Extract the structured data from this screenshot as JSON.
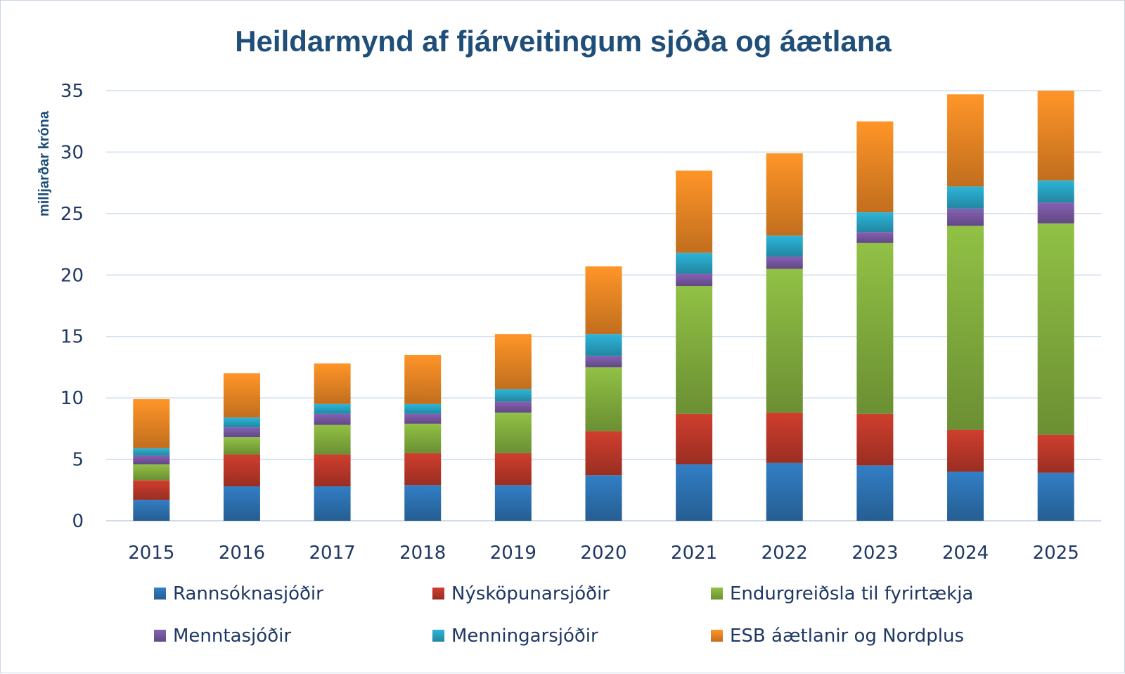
{
  "chart_data": {
    "type": "bar",
    "stacked": true,
    "title": "Heildarmynd af fjárveitingum sjóða og áætlana",
    "xlabel": "",
    "ylabel": "milljarðar króna",
    "ylim": [
      0,
      35
    ],
    "yticks": [
      0,
      5,
      10,
      15,
      20,
      25,
      30,
      35
    ],
    "grid": true,
    "legend_position": "bottom",
    "categories": [
      "2015",
      "2016",
      "2017",
      "2018",
      "2019",
      "2020",
      "2021",
      "2022",
      "2023",
      "2024",
      "2025"
    ],
    "series": [
      {
        "name": "Rannsóknasjóðir",
        "color": "#2e75b6",
        "values": [
          1.7,
          2.8,
          2.8,
          2.9,
          2.9,
          3.7,
          4.6,
          4.7,
          4.5,
          4.0,
          3.9
        ]
      },
      {
        "name": "Nýsköpunarsjóðir",
        "color": "#c0392b",
        "values": [
          1.6,
          2.6,
          2.6,
          2.6,
          2.6,
          3.6,
          4.1,
          4.1,
          4.2,
          3.4,
          3.1
        ]
      },
      {
        "name": "Endurgreiðsla til fyrirtækja",
        "color": "#86b340",
        "values": [
          1.3,
          1.4,
          2.4,
          2.4,
          3.3,
          5.2,
          10.4,
          11.7,
          13.9,
          16.6,
          17.2
        ]
      },
      {
        "name": "Menntasjóðir",
        "color": "#7b5aa6",
        "values": [
          0.7,
          0.8,
          0.9,
          0.8,
          0.9,
          0.9,
          1.0,
          1.0,
          0.9,
          1.4,
          1.7
        ]
      },
      {
        "name": "Menningarsjóðir",
        "color": "#2aa8c9",
        "values": [
          0.6,
          0.8,
          0.8,
          0.8,
          1.0,
          1.8,
          1.7,
          1.7,
          1.6,
          1.8,
          1.8
        ]
      },
      {
        "name": "ESB áætlanir og Nordplus",
        "color": "#f18a25",
        "values": [
          4.0,
          3.6,
          3.3,
          4.0,
          4.5,
          5.5,
          6.7,
          6.7,
          7.4,
          7.5,
          7.3
        ]
      }
    ]
  }
}
